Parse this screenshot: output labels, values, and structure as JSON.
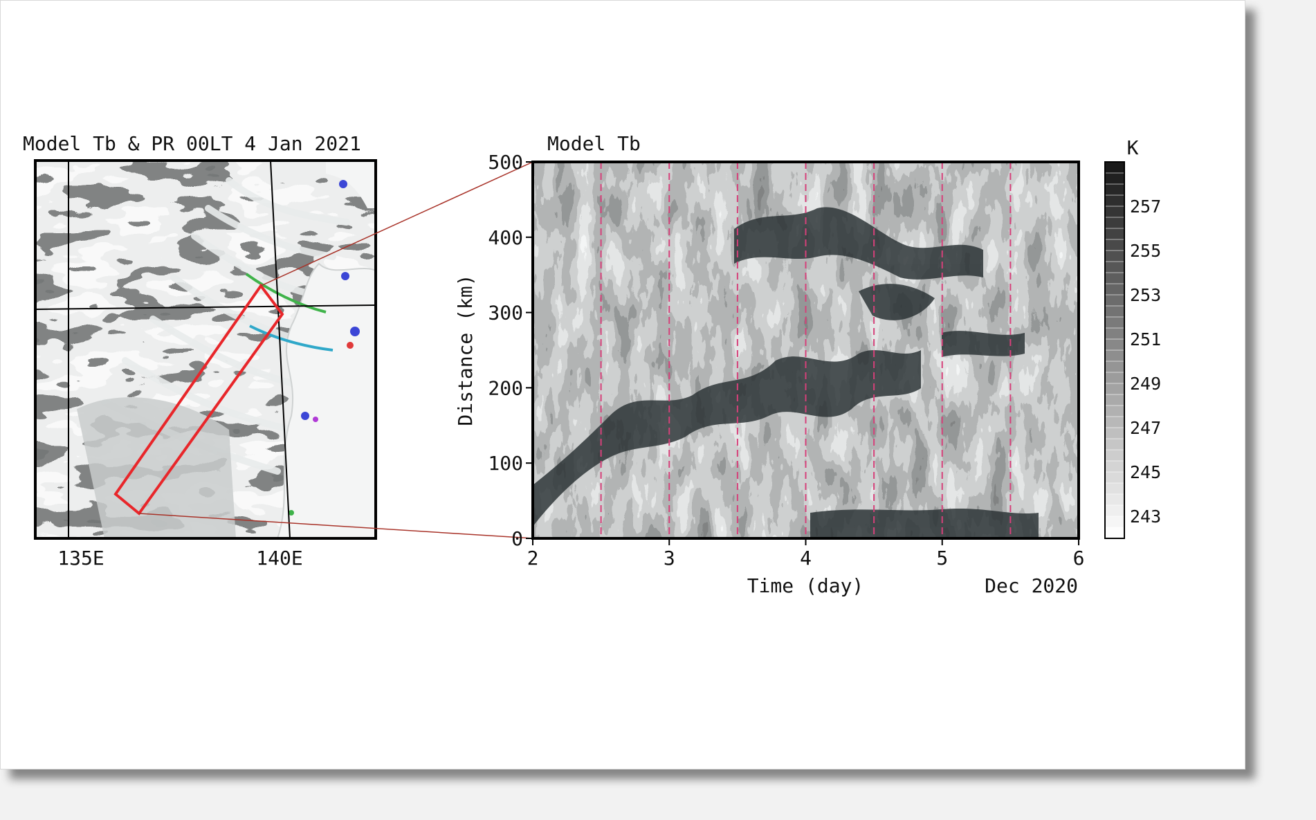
{
  "chart_data": [
    {
      "type": "heatmap",
      "panel": "map",
      "title": "Model Tb & PR 00LT 4 Jan 2021",
      "x_ticks": [
        "135E",
        "140E"
      ],
      "highlight": "red rotated box along northwest-southeast transect",
      "colors": {
        "box": "#e8262a",
        "land": "#ffffff",
        "cloud_dark": "#2b2f30"
      }
    },
    {
      "type": "heatmap",
      "panel": "hovmoller",
      "title": "Model Tb",
      "xlabel": "Time (day)",
      "ylabel": "Distance (km)",
      "x_ticks": [
        2,
        3,
        4,
        5,
        6
      ],
      "y_ticks": [
        0,
        100,
        200,
        300,
        400,
        500
      ],
      "xlim": [
        2,
        6
      ],
      "ylim": [
        0,
        500
      ],
      "date_label": "Dec 2020",
      "dashed_lines_x": [
        2.5,
        3,
        3.5,
        4,
        4.5,
        5,
        5.5
      ],
      "dashed_color": "#d6407a",
      "colorbar": {
        "unit": "K",
        "range": [
          242,
          259
        ],
        "tick_labels": [
          257,
          255,
          253,
          251,
          249,
          247,
          245,
          243
        ]
      }
    }
  ]
}
